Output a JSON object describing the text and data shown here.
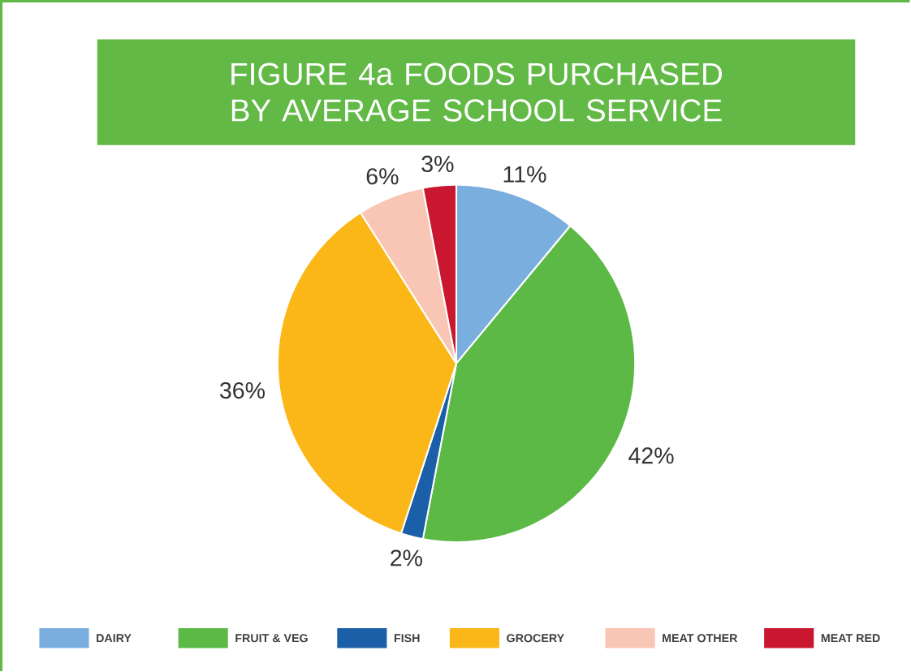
{
  "chart_data": {
    "type": "pie",
    "title": "FIGURE 4a  FOODS PURCHASED BY AVERAGE SCHOOL SERVICE",
    "categories": [
      "DAIRY",
      "FRUIT & VEG",
      "FISH",
      "GROCERY",
      "MEAT OTHER",
      "MEAT RED"
    ],
    "values": [
      11,
      42,
      2,
      36,
      6,
      3
    ],
    "value_labels": [
      "11%",
      "42%",
      "2%",
      "36%",
      "6%",
      "3%"
    ],
    "colors": [
      "#7aaedf",
      "#5cb946",
      "#1a5fa8",
      "#fbb717",
      "#f9c5b5",
      "#c8172e"
    ],
    "legend": "bottom"
  }
}
